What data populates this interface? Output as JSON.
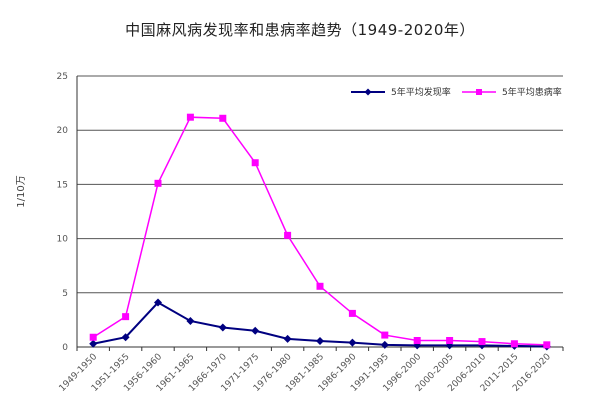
{
  "title": "中国麻风病发现率和患病率趋势（1949-2020年）",
  "chart_data": {
    "type": "line",
    "title": "中国麻风病发现率和患病率趋势（1949-2020年）",
    "xlabel": "",
    "ylabel": "1/10万",
    "ylim": [
      0,
      25
    ],
    "yticks": [
      0,
      5,
      10,
      15,
      20,
      25
    ],
    "grid": true,
    "legend_position": "top-right",
    "categories": [
      "1949-1950",
      "1951-1955",
      "1956-1960",
      "1961-1965",
      "1966-1970",
      "1971-1975",
      "1976-1980",
      "1981-1985",
      "1986-1990",
      "1991-1995",
      "1996-2000",
      "2000-2005",
      "2006-2010",
      "2011-2015",
      "2016-2020"
    ],
    "series": [
      {
        "name": "5年平均发现率",
        "color": "#000080",
        "marker": "diamond",
        "values": [
          0.3,
          0.9,
          4.1,
          2.4,
          1.8,
          1.5,
          0.75,
          0.55,
          0.4,
          0.2,
          0.15,
          0.15,
          0.15,
          0.1,
          0.05
        ]
      },
      {
        "name": "5年平均患病率",
        "color": "#ff00ff",
        "marker": "square",
        "values": [
          0.9,
          2.8,
          15.1,
          21.2,
          21.1,
          17.0,
          10.3,
          5.6,
          3.1,
          1.1,
          0.6,
          0.6,
          0.5,
          0.3,
          0.2
        ]
      }
    ]
  }
}
